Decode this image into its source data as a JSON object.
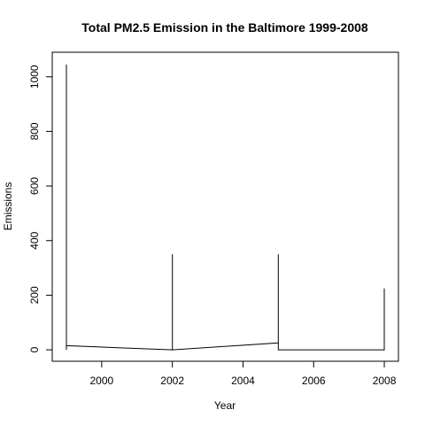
{
  "chart_data": {
    "type": "line",
    "title": "Total PM2.5 Emission in the Baltimore 1999-2008",
    "xlabel": "Year",
    "ylabel": "Emissions",
    "xlim": [
      1998.6,
      2008.4
    ],
    "ylim": [
      -42,
      1090
    ],
    "x_ticks": [
      2000,
      2002,
      2004,
      2006,
      2008
    ],
    "x_tick_labels": [
      "2000",
      "2002",
      "2004",
      "2006",
      "2008"
    ],
    "y_ticks": [
      0,
      200,
      400,
      600,
      800,
      1000
    ],
    "y_tick_labels": [
      "0",
      "200",
      "400",
      "600",
      "800",
      "1000"
    ],
    "grid": false,
    "series": [
      {
        "x": [
          1999,
          1999,
          1999,
          2002,
          2002,
          2002,
          2005,
          2005,
          2005,
          2008,
          2008
        ],
        "y": [
          0,
          1045,
          15,
          0,
          350,
          0,
          25,
          350,
          0,
          0,
          225
        ]
      }
    ]
  }
}
